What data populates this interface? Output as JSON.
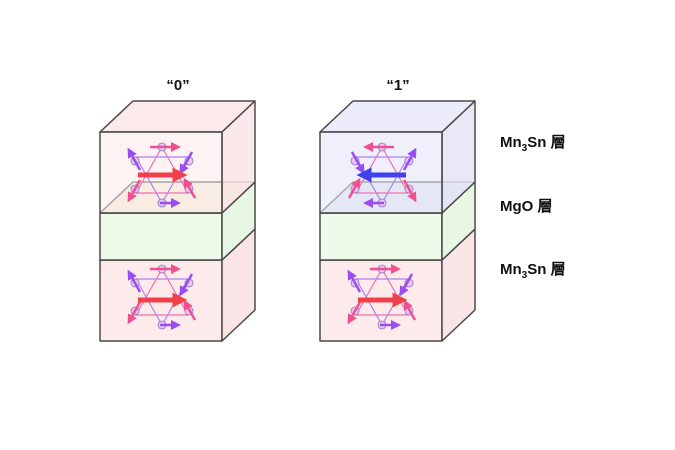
{
  "states": [
    {
      "label": "“0”",
      "top_layer_moment": "right",
      "bottom_layer_moment": "right"
    },
    {
      "label": "“1”",
      "top_layer_moment": "left",
      "bottom_layer_moment": "right"
    }
  ],
  "layers": {
    "top": {
      "base": "Mn",
      "sub": "3",
      "tail": "Sn 層"
    },
    "middle": {
      "text": "MgO 層"
    },
    "bottom": {
      "base": "Mn",
      "sub": "3",
      "tail": "Sn 層"
    }
  },
  "colors": {
    "mn3sn_pink": "#fdeaea",
    "mn3sn_blue": "#ececfb",
    "mgo_green": "#eefbe9",
    "red_arrow": "#f0404a",
    "blue_arrow": "#4040ee",
    "pink_spin": "#f0508f",
    "purple_spin": "#9a4ef0"
  }
}
